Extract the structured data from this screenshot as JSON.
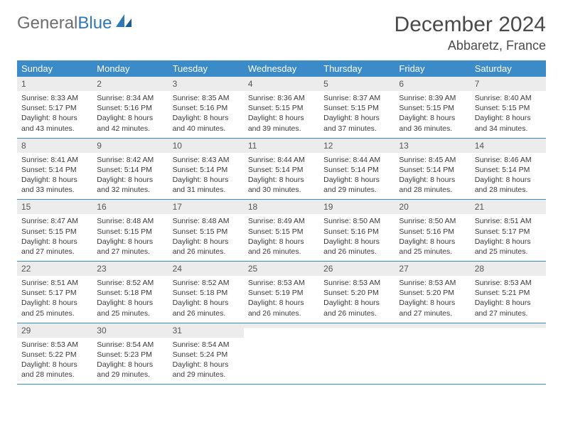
{
  "brand": {
    "word1": "General",
    "word2": "Blue"
  },
  "title": "December 2024",
  "location": "Abbaretz, France",
  "colors": {
    "header_bg": "#3b8bc9",
    "header_text": "#ffffff",
    "daynum_bg": "#ececec",
    "border": "#3b8bc9",
    "body_text": "#3a3a3a",
    "brand_gray": "#6e6e6e",
    "brand_blue": "#2f78b7",
    "title_color": "#4a4a4a"
  },
  "weekdays": [
    "Sunday",
    "Monday",
    "Tuesday",
    "Wednesday",
    "Thursday",
    "Friday",
    "Saturday"
  ],
  "weeks": [
    [
      {
        "n": "1",
        "sr": "Sunrise: 8:33 AM",
        "ss": "Sunset: 5:17 PM",
        "d1": "Daylight: 8 hours",
        "d2": "and 43 minutes."
      },
      {
        "n": "2",
        "sr": "Sunrise: 8:34 AM",
        "ss": "Sunset: 5:16 PM",
        "d1": "Daylight: 8 hours",
        "d2": "and 42 minutes."
      },
      {
        "n": "3",
        "sr": "Sunrise: 8:35 AM",
        "ss": "Sunset: 5:16 PM",
        "d1": "Daylight: 8 hours",
        "d2": "and 40 minutes."
      },
      {
        "n": "4",
        "sr": "Sunrise: 8:36 AM",
        "ss": "Sunset: 5:15 PM",
        "d1": "Daylight: 8 hours",
        "d2": "and 39 minutes."
      },
      {
        "n": "5",
        "sr": "Sunrise: 8:37 AM",
        "ss": "Sunset: 5:15 PM",
        "d1": "Daylight: 8 hours",
        "d2": "and 37 minutes."
      },
      {
        "n": "6",
        "sr": "Sunrise: 8:39 AM",
        "ss": "Sunset: 5:15 PM",
        "d1": "Daylight: 8 hours",
        "d2": "and 36 minutes."
      },
      {
        "n": "7",
        "sr": "Sunrise: 8:40 AM",
        "ss": "Sunset: 5:15 PM",
        "d1": "Daylight: 8 hours",
        "d2": "and 34 minutes."
      }
    ],
    [
      {
        "n": "8",
        "sr": "Sunrise: 8:41 AM",
        "ss": "Sunset: 5:14 PM",
        "d1": "Daylight: 8 hours",
        "d2": "and 33 minutes."
      },
      {
        "n": "9",
        "sr": "Sunrise: 8:42 AM",
        "ss": "Sunset: 5:14 PM",
        "d1": "Daylight: 8 hours",
        "d2": "and 32 minutes."
      },
      {
        "n": "10",
        "sr": "Sunrise: 8:43 AM",
        "ss": "Sunset: 5:14 PM",
        "d1": "Daylight: 8 hours",
        "d2": "and 31 minutes."
      },
      {
        "n": "11",
        "sr": "Sunrise: 8:44 AM",
        "ss": "Sunset: 5:14 PM",
        "d1": "Daylight: 8 hours",
        "d2": "and 30 minutes."
      },
      {
        "n": "12",
        "sr": "Sunrise: 8:44 AM",
        "ss": "Sunset: 5:14 PM",
        "d1": "Daylight: 8 hours",
        "d2": "and 29 minutes."
      },
      {
        "n": "13",
        "sr": "Sunrise: 8:45 AM",
        "ss": "Sunset: 5:14 PM",
        "d1": "Daylight: 8 hours",
        "d2": "and 28 minutes."
      },
      {
        "n": "14",
        "sr": "Sunrise: 8:46 AM",
        "ss": "Sunset: 5:14 PM",
        "d1": "Daylight: 8 hours",
        "d2": "and 28 minutes."
      }
    ],
    [
      {
        "n": "15",
        "sr": "Sunrise: 8:47 AM",
        "ss": "Sunset: 5:15 PM",
        "d1": "Daylight: 8 hours",
        "d2": "and 27 minutes."
      },
      {
        "n": "16",
        "sr": "Sunrise: 8:48 AM",
        "ss": "Sunset: 5:15 PM",
        "d1": "Daylight: 8 hours",
        "d2": "and 27 minutes."
      },
      {
        "n": "17",
        "sr": "Sunrise: 8:48 AM",
        "ss": "Sunset: 5:15 PM",
        "d1": "Daylight: 8 hours",
        "d2": "and 26 minutes."
      },
      {
        "n": "18",
        "sr": "Sunrise: 8:49 AM",
        "ss": "Sunset: 5:15 PM",
        "d1": "Daylight: 8 hours",
        "d2": "and 26 minutes."
      },
      {
        "n": "19",
        "sr": "Sunrise: 8:50 AM",
        "ss": "Sunset: 5:16 PM",
        "d1": "Daylight: 8 hours",
        "d2": "and 26 minutes."
      },
      {
        "n": "20",
        "sr": "Sunrise: 8:50 AM",
        "ss": "Sunset: 5:16 PM",
        "d1": "Daylight: 8 hours",
        "d2": "and 25 minutes."
      },
      {
        "n": "21",
        "sr": "Sunrise: 8:51 AM",
        "ss": "Sunset: 5:17 PM",
        "d1": "Daylight: 8 hours",
        "d2": "and 25 minutes."
      }
    ],
    [
      {
        "n": "22",
        "sr": "Sunrise: 8:51 AM",
        "ss": "Sunset: 5:17 PM",
        "d1": "Daylight: 8 hours",
        "d2": "and 25 minutes."
      },
      {
        "n": "23",
        "sr": "Sunrise: 8:52 AM",
        "ss": "Sunset: 5:18 PM",
        "d1": "Daylight: 8 hours",
        "d2": "and 25 minutes."
      },
      {
        "n": "24",
        "sr": "Sunrise: 8:52 AM",
        "ss": "Sunset: 5:18 PM",
        "d1": "Daylight: 8 hours",
        "d2": "and 26 minutes."
      },
      {
        "n": "25",
        "sr": "Sunrise: 8:53 AM",
        "ss": "Sunset: 5:19 PM",
        "d1": "Daylight: 8 hours",
        "d2": "and 26 minutes."
      },
      {
        "n": "26",
        "sr": "Sunrise: 8:53 AM",
        "ss": "Sunset: 5:20 PM",
        "d1": "Daylight: 8 hours",
        "d2": "and 26 minutes."
      },
      {
        "n": "27",
        "sr": "Sunrise: 8:53 AM",
        "ss": "Sunset: 5:20 PM",
        "d1": "Daylight: 8 hours",
        "d2": "and 27 minutes."
      },
      {
        "n": "28",
        "sr": "Sunrise: 8:53 AM",
        "ss": "Sunset: 5:21 PM",
        "d1": "Daylight: 8 hours",
        "d2": "and 27 minutes."
      }
    ],
    [
      {
        "n": "29",
        "sr": "Sunrise: 8:53 AM",
        "ss": "Sunset: 5:22 PM",
        "d1": "Daylight: 8 hours",
        "d2": "and 28 minutes."
      },
      {
        "n": "30",
        "sr": "Sunrise: 8:54 AM",
        "ss": "Sunset: 5:23 PM",
        "d1": "Daylight: 8 hours",
        "d2": "and 29 minutes."
      },
      {
        "n": "31",
        "sr": "Sunrise: 8:54 AM",
        "ss": "Sunset: 5:24 PM",
        "d1": "Daylight: 8 hours",
        "d2": "and 29 minutes."
      },
      {
        "n": "",
        "sr": "",
        "ss": "",
        "d1": "",
        "d2": ""
      },
      {
        "n": "",
        "sr": "",
        "ss": "",
        "d1": "",
        "d2": ""
      },
      {
        "n": "",
        "sr": "",
        "ss": "",
        "d1": "",
        "d2": ""
      },
      {
        "n": "",
        "sr": "",
        "ss": "",
        "d1": "",
        "d2": ""
      }
    ]
  ]
}
